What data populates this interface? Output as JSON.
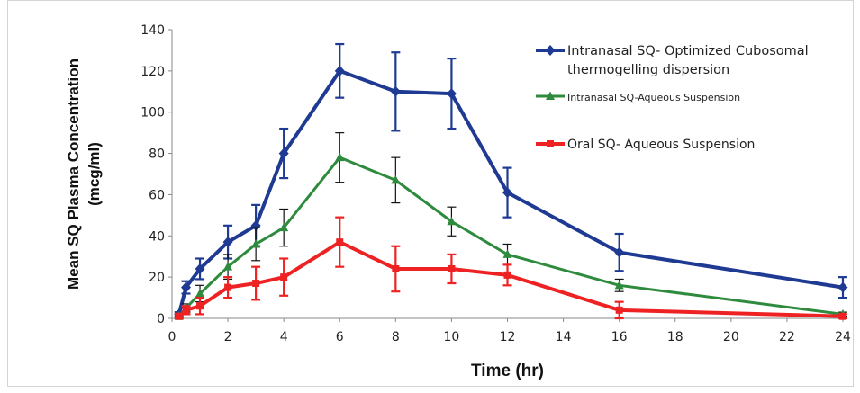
{
  "chart_data": {
    "type": "line",
    "title": "",
    "xlabel": "Time (hr)",
    "ylabel_line1": "Mean SQ Plasma Concentration",
    "ylabel_line2": "(mcg/ml)",
    "xlim": [
      0,
      24
    ],
    "ylim": [
      0,
      140
    ],
    "xticks": [
      0,
      2,
      4,
      6,
      8,
      10,
      12,
      14,
      16,
      18,
      20,
      22,
      24
    ],
    "yticks": [
      0,
      20,
      40,
      60,
      80,
      100,
      120,
      140
    ],
    "grid": false,
    "legend_position": "top-right",
    "series": [
      {
        "name_lines": [
          "Intranasal SQ- Optimized Cubosomal",
          "thermogelling dispersion"
        ],
        "color": "#1f3a93",
        "marker": "diamond",
        "x": [
          0.25,
          0.5,
          1,
          2,
          3,
          4,
          6,
          8,
          10,
          12,
          16,
          24
        ],
        "y": [
          2,
          15,
          24,
          37,
          45,
          80,
          120,
          110,
          109,
          61,
          32,
          15
        ],
        "err": [
          1,
          3,
          5,
          8,
          10,
          12,
          13,
          19,
          17,
          12,
          9,
          5
        ]
      },
      {
        "name_lines": [
          "Intranasal SQ-Aqueous Suspension"
        ],
        "color": "#2e8b3e",
        "marker": "triangle",
        "x": [
          0.25,
          0.5,
          1,
          2,
          3,
          4,
          6,
          8,
          10,
          12,
          16,
          24
        ],
        "y": [
          1,
          5,
          12,
          25,
          36,
          44,
          78,
          67,
          47,
          31,
          16,
          2
        ],
        "err": [
          1,
          2,
          4,
          6,
          8,
          9,
          12,
          11,
          7,
          5,
          3,
          1
        ]
      },
      {
        "name_lines": [
          "Oral SQ- Aqueous Suspension"
        ],
        "color": "#ee2222",
        "marker": "square",
        "x": [
          0.25,
          0.5,
          1,
          2,
          3,
          4,
          6,
          8,
          10,
          12,
          16,
          24
        ],
        "y": [
          1,
          4,
          6,
          15,
          17,
          20,
          37,
          24,
          24,
          21,
          4,
          1
        ],
        "err": [
          1,
          2,
          4,
          5,
          8,
          9,
          12,
          11,
          7,
          5,
          4,
          1
        ]
      }
    ]
  }
}
